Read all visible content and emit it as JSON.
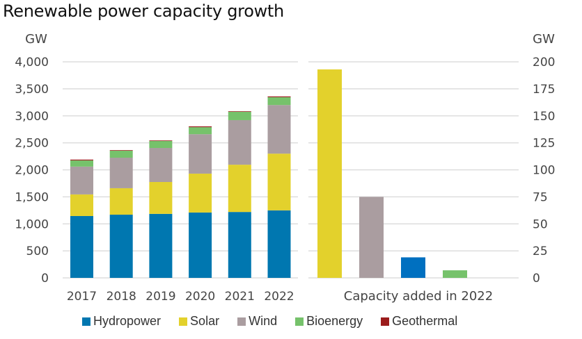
{
  "chart_data": [
    {
      "type": "bar",
      "stacked": true,
      "title": "Renewable power capacity growth",
      "ylabel": "GW",
      "xlabel": "",
      "ylim": [
        0,
        4000
      ],
      "yticks": [
        "0",
        "500",
        "1,000",
        "1,500",
        "2,000",
        "2,500",
        "3,000",
        "3,500",
        "4,000"
      ],
      "ytick_values": [
        0,
        500,
        1000,
        1500,
        2000,
        2500,
        3000,
        3500,
        4000
      ],
      "grid": true,
      "categories": [
        "2017",
        "2018",
        "2019",
        "2020",
        "2021",
        "2022"
      ],
      "series": [
        {
          "name": "Hydropower",
          "color": "#0077b0",
          "values": [
            1145,
            1170,
            1185,
            1210,
            1220,
            1250
          ]
        },
        {
          "name": "Solar",
          "color": "#e3d12c",
          "values": [
            400,
            490,
            590,
            720,
            875,
            1050
          ]
        },
        {
          "name": "Wind",
          "color": "#aa9da0",
          "values": [
            515,
            565,
            630,
            730,
            825,
            900
          ]
        },
        {
          "name": "Bioenergy",
          "color": "#76c26b",
          "values": [
            115,
            130,
            130,
            130,
            155,
            145
          ]
        },
        {
          "name": "Geothermal",
          "color": "#9b1c1c",
          "values": [
            15,
            10,
            10,
            15,
            10,
            15
          ]
        }
      ]
    },
    {
      "type": "bar",
      "stacked": false,
      "title": "",
      "ylabel": "GW",
      "xlabel": "Capacity added in 2022",
      "ylim": [
        0,
        200
      ],
      "yticks": [
        "0",
        "25",
        "50",
        "75",
        "100",
        "125",
        "150",
        "175",
        "200"
      ],
      "ytick_values": [
        0,
        25,
        50,
        75,
        100,
        125,
        150,
        175,
        200
      ],
      "grid": true,
      "axis_side": "right",
      "categories": [
        "Solar",
        "Wind",
        "Hydropower",
        "Bioenergy",
        "Geothermal"
      ],
      "values": [
        193,
        75,
        19,
        7,
        0
      ],
      "colors": [
        "#e3d12c",
        "#aa9da0",
        "#0070c0",
        "#76c26b",
        "#9b1c1c"
      ]
    }
  ],
  "legend": {
    "position": "bottom",
    "items": [
      {
        "label": "Hydropower",
        "color": "#0077b0"
      },
      {
        "label": "Solar",
        "color": "#e3d12c"
      },
      {
        "label": "Wind",
        "color": "#aa9da0"
      },
      {
        "label": "Bioenergy",
        "color": "#76c26b"
      },
      {
        "label": "Geothermal",
        "color": "#9b1c1c"
      }
    ]
  }
}
